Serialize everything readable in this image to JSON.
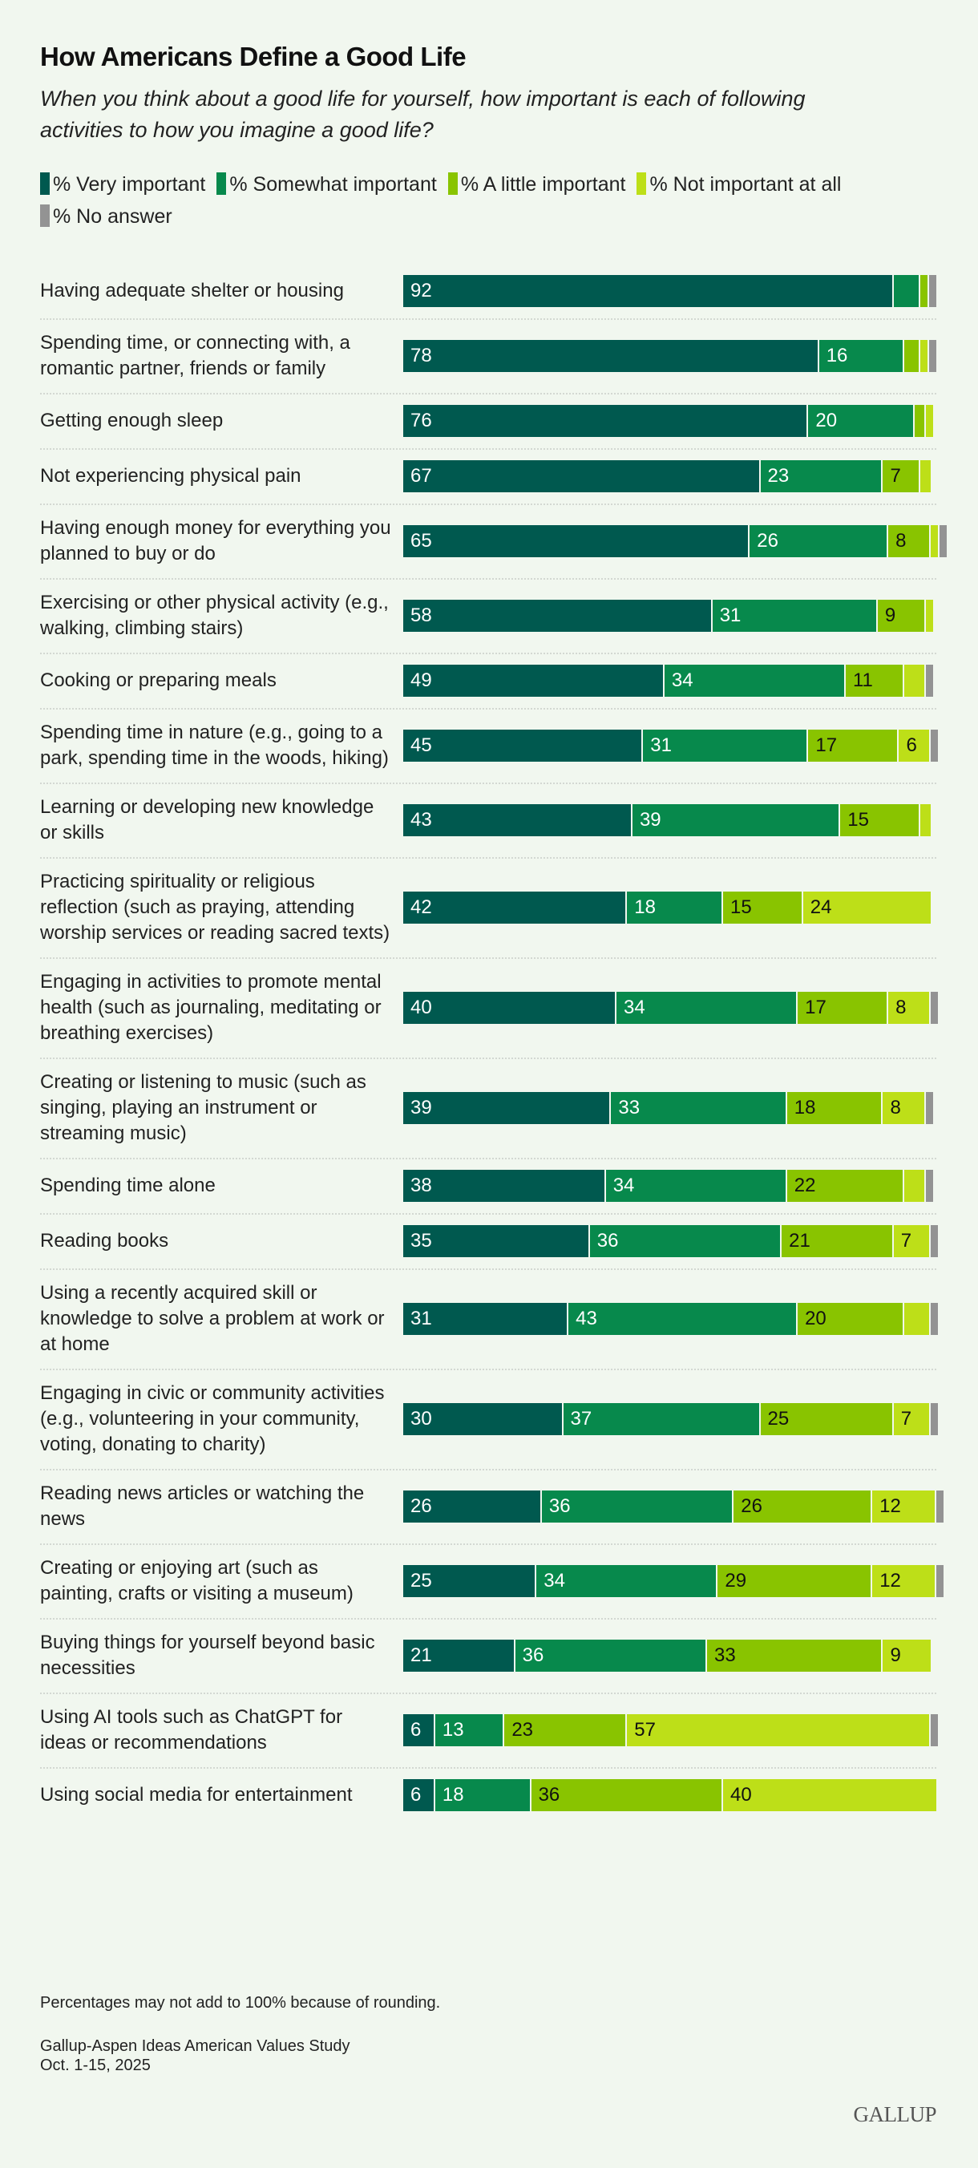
{
  "title": "How Americans Define a Good Life",
  "subtitle": "When you think about a good life for yourself, how important is each of following activities to how you imagine a good life?",
  "footer": {
    "note": "Percentages may not add to 100% because of rounding.",
    "source": "Gallup-Aspen Ideas American Values Study",
    "date": "Oct. 1-15, 2025",
    "logo": "GALLUP"
  },
  "chart_data": {
    "type": "bar",
    "stacked": true,
    "orientation": "horizontal",
    "title": "How Americans Define a Good Life",
    "xlim": [
      0,
      100
    ],
    "legend": "top",
    "series": [
      {
        "name": "% Very important",
        "color": "#00594f",
        "text": "#ffffff"
      },
      {
        "name": "% Somewhat important",
        "color": "#07894c",
        "text": "#ffffff"
      },
      {
        "name": "% A little important",
        "color": "#89c400",
        "text": "#111111"
      },
      {
        "name": "% Not important at all",
        "color": "#bddf18",
        "text": "#111111"
      },
      {
        "name": "% No answer",
        "color": "#939393",
        "text": "#111111"
      }
    ],
    "categories": [
      {
        "label": "Having adequate shelter or housing",
        "values": [
          92,
          5,
          1,
          0,
          1
        ]
      },
      {
        "label": "Spending time, or connecting with, a romantic partner, friends or family",
        "values": [
          78,
          16,
          3,
          1,
          1
        ]
      },
      {
        "label": "Getting enough sleep",
        "values": [
          76,
          20,
          2,
          1,
          0
        ]
      },
      {
        "label": "Not experiencing physical pain",
        "values": [
          67,
          23,
          7,
          2,
          0
        ]
      },
      {
        "label": "Having enough money for everything you planned to buy or do",
        "values": [
          65,
          26,
          8,
          1,
          1
        ]
      },
      {
        "label": "Exercising or other physical activity (e.g., walking, climbing stairs)",
        "values": [
          58,
          31,
          9,
          1,
          0
        ]
      },
      {
        "label": "Cooking or preparing meals",
        "values": [
          49,
          34,
          11,
          4,
          1
        ]
      },
      {
        "label": "Spending time in nature (e.g., going to a park, spending time in the woods, hiking)",
        "values": [
          45,
          31,
          17,
          6,
          1
        ]
      },
      {
        "label": "Learning or developing new knowledge or skills",
        "values": [
          43,
          39,
          15,
          2,
          0
        ]
      },
      {
        "label": "Practicing spirituality or religious reflection (such as praying, attending worship services or reading sacred texts)",
        "values": [
          42,
          18,
          15,
          24,
          0
        ]
      },
      {
        "label": "Engaging in activities to promote mental health (such as journaling, meditating or breathing exercises)",
        "values": [
          40,
          34,
          17,
          8,
          1
        ]
      },
      {
        "label": "Creating or listening to music (such as singing, playing an instrument or streaming music)",
        "values": [
          39,
          33,
          18,
          8,
          1
        ]
      },
      {
        "label": "Spending time alone",
        "values": [
          38,
          34,
          22,
          4,
          1
        ]
      },
      {
        "label": "Reading books",
        "values": [
          35,
          36,
          21,
          7,
          1
        ]
      },
      {
        "label": "Using a recently acquired skill or knowledge to solve a problem at work or at home",
        "values": [
          31,
          43,
          20,
          5,
          1
        ]
      },
      {
        "label": "Engaging in civic or community activities (e.g., volunteering in your community, voting, donating to charity)",
        "values": [
          30,
          37,
          25,
          7,
          1
        ]
      },
      {
        "label": "Reading news articles or watching the news",
        "values": [
          26,
          36,
          26,
          12,
          1
        ]
      },
      {
        "label": "Creating or enjoying art (such as painting, crafts or visiting a museum)",
        "values": [
          25,
          34,
          29,
          12,
          1
        ]
      },
      {
        "label": "Buying things for yourself beyond basic necessities",
        "values": [
          21,
          36,
          33,
          9,
          0
        ]
      },
      {
        "label": "Using AI tools such as ChatGPT for ideas or recommendations",
        "values": [
          6,
          13,
          23,
          57,
          1
        ]
      },
      {
        "label": "Using social media for entertainment",
        "values": [
          6,
          18,
          36,
          40,
          0
        ]
      }
    ]
  }
}
